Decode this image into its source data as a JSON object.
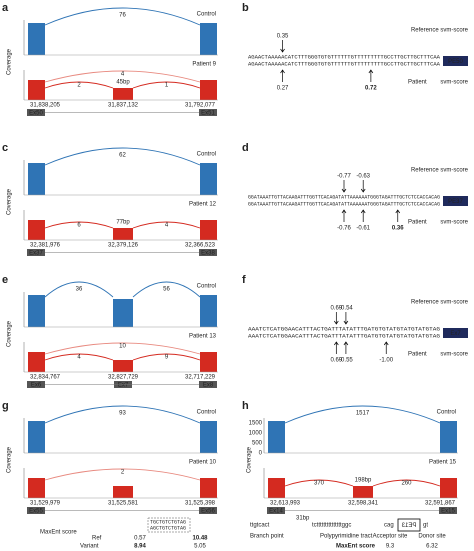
{
  "panels": {
    "a": {
      "letter": "a",
      "axis": "Coverage",
      "control": "Control",
      "patient": "Patient 9",
      "control_counts": [
        "76"
      ],
      "patient_counts": [
        "4",
        "2",
        "1"
      ],
      "insert": "45bp",
      "coords": [
        "31,838,205",
        "31,837,132",
        "31,792,077"
      ],
      "exons": [
        "Ex50",
        "Ex51"
      ]
    },
    "b": {
      "letter": "b",
      "reference": "Reference svm-score",
      "patient": "Patient",
      "score": "svm-score",
      "ref_scores": [
        "0.35"
      ],
      "patient_scores": [
        "0.27",
        "0.72"
      ],
      "sequences": [
        "AGAACTAAAAACATCTTTGGGTGTGTTTTTTGTTTTTTTTTGCCTTGCTTGCTTTCAA",
        "AGAACTAAAAACATCTTTGGGTGTGTTTTTTGTTTTTTTTTGCCTTGCTTGCTTTCAA"
      ],
      "exon": "PE50"
    },
    "c": {
      "letter": "c",
      "axis": "Coverage",
      "control": "Control",
      "patient": "Patient 12",
      "control_counts": [
        "62"
      ],
      "patient_counts": [
        "6",
        "4"
      ],
      "insert": "77bp",
      "coords": [
        "32,381,976",
        "32,379,126",
        "32,366,523"
      ],
      "exons": [
        "Ex37",
        "Ex38"
      ]
    },
    "d": {
      "letter": "d",
      "reference": "Reference svm-score",
      "patient": "Patient",
      "score": "svm-score",
      "ref_scores": [
        "-0.77",
        "-0.63"
      ],
      "patient_scores": [
        "-0.76",
        "-0.61",
        "0.36"
      ],
      "sequences": [
        "GGATAAATTGTTACAAGATTTGGTTCACAGATATTAAAAAATGGGTAGATTTGCTCTCCACCACAG",
        "GGATAAATTGTTACAAGATTTGGTTCACAGATATTAAAAAATGGGTAGATTTGCTCTCCACCACAG"
      ],
      "exon": "PE37"
    },
    "e": {
      "letter": "e",
      "axis": "Coverage",
      "control": "Control",
      "patient": "Patient 13",
      "control_counts": [
        "36",
        "56"
      ],
      "patient_counts": [
        "10",
        "4",
        "9"
      ],
      "coords": [
        "32,834,767",
        "32,827,729",
        "32,717,229"
      ],
      "exons": [
        "Ex6",
        "Ex7",
        "Ex8"
      ]
    },
    "f": {
      "letter": "f",
      "reference": "Reference svm-score",
      "patient": "Patient",
      "score": "svm-score",
      "ref_scores": [
        "0.69",
        "-0.54"
      ],
      "patient_scores": [
        "0.69",
        "-0.55",
        "-1.00"
      ],
      "sequences": [
        "AAATCTCATGGAACATTTACTGATTTATATTTGATGTGTATGTATGTATGTAG",
        "AAATCTCATGGAACATTTACTGATTTATATTTGATGTGTATGTATGTATGTAG"
      ],
      "exon": "Ex7"
    },
    "g": {
      "letter": "g",
      "axis": "Coverage",
      "control": "Control",
      "patient": "Patient 10",
      "control_counts": [
        "93"
      ],
      "patient_counts": [
        "2"
      ],
      "coords": [
        "31,529,979",
        "31,525,581",
        "31,525,398"
      ],
      "exons": [
        "Ex55",
        "Ex56"
      ],
      "sequences": [
        "TGCTGTCTGTAG",
        "AGCTGTCTGTAG"
      ],
      "maxent": "MaxEnt score",
      "ref": "Ref",
      "variant": "Variant",
      "ref_values": [
        "0.57",
        "10.48"
      ],
      "variant_values": [
        "8.94",
        "5.05"
      ]
    },
    "h": {
      "letter": "h",
      "axis": "Coverage",
      "control": "Control",
      "patient": "Patient 15",
      "control_counts": [
        "1517"
      ],
      "patient_counts": [
        "370",
        "260"
      ],
      "insert": "198bp",
      "coords": [
        "32,613,993",
        "32,598,341",
        "32,591,867"
      ],
      "exons": [
        "Ex14",
        "Ex15"
      ],
      "yticks": [
        "0",
        "500",
        "1000",
        "1500"
      ],
      "branch_seq": "ttgtcact",
      "gap": "31bp",
      "ppt_seq": "tctttttttttttttttggc",
      "acceptor_seq": "cag",
      "pseudo_exon": "PE13",
      "donor_seq": "gt",
      "branch": "Branch point",
      "ppt": "Polypyrimidine tract",
      "acceptor": "Acceptor site",
      "donor": "Donor site",
      "maxent": "MaxEnt score",
      "maxent_values": [
        "9.3",
        "6.32"
      ]
    }
  }
}
